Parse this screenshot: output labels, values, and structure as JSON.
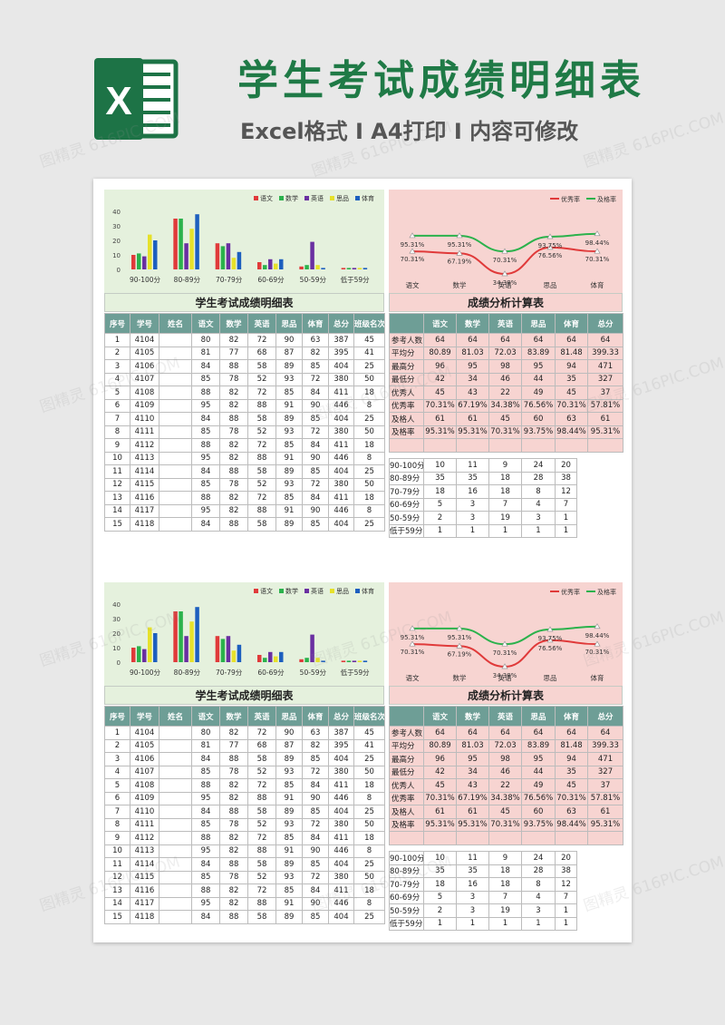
{
  "header": {
    "logo_letter": "X",
    "title": "学生考试成绩明细表",
    "subtitle": "Excel格式 I A4打印 I 内容可修改"
  },
  "watermark": "图精灵 616PIC.COM",
  "colors": {
    "title": "#1f7a46",
    "logo": "#1d7346",
    "chinese": "#e03a3a",
    "math": "#2bb24c",
    "english": "#6a2fa1",
    "politics": "#e6e12a",
    "pe": "#1d5fbf",
    "header_fill": "#6e9e96",
    "left_panel": "#e5f1dd",
    "right_panel": "#f7d4d1"
  },
  "left_table": {
    "title": "学生考试成绩明细表",
    "headers": [
      "序号",
      "学号",
      "姓名",
      "语文",
      "数学",
      "英语",
      "思品",
      "体育",
      "总分",
      "班级名次"
    ],
    "rows": [
      [
        "1",
        "4104",
        "",
        "80",
        "82",
        "72",
        "90",
        "63",
        "387",
        "45"
      ],
      [
        "2",
        "4105",
        "",
        "81",
        "77",
        "68",
        "87",
        "82",
        "395",
        "41"
      ],
      [
        "3",
        "4106",
        "",
        "84",
        "88",
        "58",
        "89",
        "85",
        "404",
        "25"
      ],
      [
        "4",
        "4107",
        "",
        "85",
        "78",
        "52",
        "93",
        "72",
        "380",
        "50"
      ],
      [
        "5",
        "4108",
        "",
        "88",
        "82",
        "72",
        "85",
        "84",
        "411",
        "18"
      ],
      [
        "6",
        "4109",
        "",
        "95",
        "82",
        "88",
        "91",
        "90",
        "446",
        "8"
      ],
      [
        "7",
        "4110",
        "",
        "84",
        "88",
        "58",
        "89",
        "85",
        "404",
        "25"
      ],
      [
        "8",
        "4111",
        "",
        "85",
        "78",
        "52",
        "93",
        "72",
        "380",
        "50"
      ],
      [
        "9",
        "4112",
        "",
        "88",
        "82",
        "72",
        "85",
        "84",
        "411",
        "18"
      ],
      [
        "10",
        "4113",
        "",
        "95",
        "82",
        "88",
        "91",
        "90",
        "446",
        "8"
      ],
      [
        "11",
        "4114",
        "",
        "84",
        "88",
        "58",
        "89",
        "85",
        "404",
        "25"
      ],
      [
        "12",
        "4115",
        "",
        "85",
        "78",
        "52",
        "93",
        "72",
        "380",
        "50"
      ],
      [
        "13",
        "4116",
        "",
        "88",
        "82",
        "72",
        "85",
        "84",
        "411",
        "18"
      ],
      [
        "14",
        "4117",
        "",
        "95",
        "82",
        "88",
        "91",
        "90",
        "446",
        "8"
      ],
      [
        "15",
        "4118",
        "",
        "84",
        "88",
        "58",
        "89",
        "85",
        "404",
        "25"
      ]
    ]
  },
  "right_table": {
    "title": "成绩分析计算表",
    "headers": [
      "",
      "语文",
      "数学",
      "英语",
      "思品",
      "体育",
      "总分"
    ],
    "rows": [
      [
        "参考人数",
        "64",
        "64",
        "64",
        "64",
        "64",
        "64"
      ],
      [
        "平均分",
        "80.89",
        "81.03",
        "72.03",
        "83.89",
        "81.48",
        "399.33"
      ],
      [
        "最高分",
        "96",
        "95",
        "98",
        "95",
        "94",
        "471"
      ],
      [
        "最低分",
        "42",
        "34",
        "46",
        "44",
        "35",
        "327"
      ],
      [
        "优秀人",
        "45",
        "43",
        "22",
        "49",
        "45",
        "37"
      ],
      [
        "优秀率",
        "70.31%",
        "67.19%",
        "34.38%",
        "76.56%",
        "70.31%",
        "57.81%"
      ],
      [
        "及格人",
        "61",
        "61",
        "45",
        "60",
        "63",
        "61"
      ],
      [
        "及格率",
        "95.31%",
        "95.31%",
        "70.31%",
        "93.75%",
        "98.44%",
        "95.31%"
      ]
    ],
    "dist_rows": [
      [
        "90-100分",
        "10",
        "11",
        "9",
        "24",
        "20"
      ],
      [
        "80-89分",
        "35",
        "35",
        "18",
        "28",
        "38"
      ],
      [
        "70-79分",
        "18",
        "16",
        "18",
        "8",
        "12"
      ],
      [
        "60-69分",
        "5",
        "3",
        "7",
        "4",
        "7"
      ],
      [
        "50-59分",
        "2",
        "3",
        "19",
        "3",
        "1"
      ],
      [
        "低于59分",
        "1",
        "1",
        "1",
        "1",
        "1"
      ]
    ]
  },
  "chart_data": [
    {
      "type": "bar",
      "title": "",
      "categories": [
        "90-100分",
        "80-89分",
        "70-79分",
        "60-69分",
        "50-59分",
        "低于59分"
      ],
      "series": [
        {
          "name": "语文",
          "values": [
            10,
            35,
            18,
            5,
            2,
            1
          ]
        },
        {
          "name": "数学",
          "values": [
            11,
            35,
            16,
            3,
            3,
            1
          ]
        },
        {
          "name": "英语",
          "values": [
            9,
            18,
            18,
            7,
            19,
            1
          ]
        },
        {
          "name": "思品",
          "values": [
            24,
            28,
            8,
            4,
            3,
            1
          ]
        },
        {
          "name": "体育",
          "values": [
            20,
            38,
            12,
            7,
            1,
            1
          ]
        }
      ],
      "ylim": [
        0,
        40
      ],
      "yticks": [
        "0",
        "10",
        "20",
        "30",
        "40"
      ],
      "legend": "top-right",
      "grid": false
    },
    {
      "type": "line",
      "title": "",
      "categories": [
        "语文",
        "数学",
        "英语",
        "思品",
        "体育"
      ],
      "series": [
        {
          "name": "优秀率",
          "values": [
            70.31,
            67.19,
            34.38,
            76.56,
            70.31
          ],
          "labels": [
            "70.31%",
            "67.19%",
            "34.38%",
            "76.56%",
            "70.31%"
          ]
        },
        {
          "name": "及格率",
          "values": [
            95.31,
            95.31,
            70.31,
            93.75,
            98.44
          ],
          "labels": [
            "95.31%",
            "95.31%",
            "70.31%",
            "93.75%",
            "98.44%"
          ]
        }
      ],
      "legend": "top-right",
      "grid": false
    }
  ]
}
